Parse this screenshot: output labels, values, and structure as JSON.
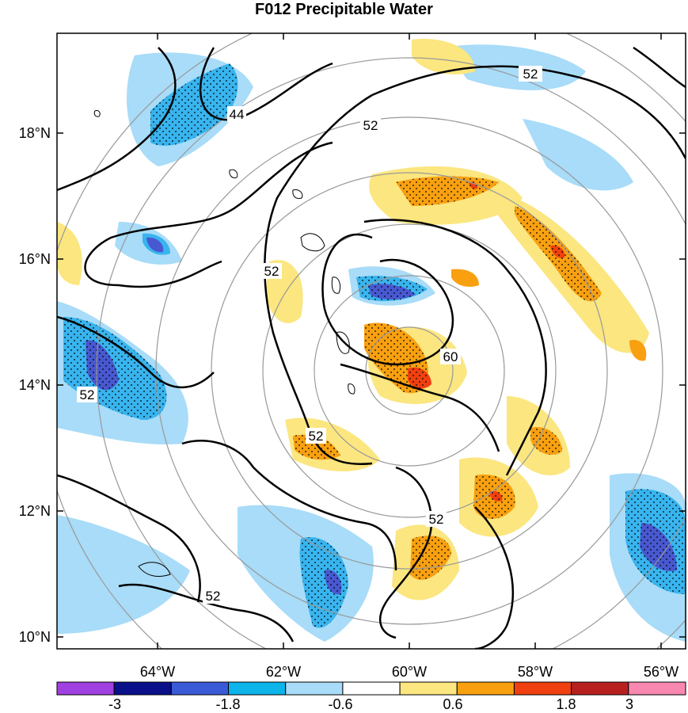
{
  "title": "F012 Precipitable Water",
  "lat_labels": [
    "18°N",
    "16°N",
    "14°N",
    "12°N",
    "10°N"
  ],
  "lon_labels": [
    "64°W",
    "62°W",
    "60°W",
    "58°W",
    "56°W"
  ],
  "contour_labels": [
    "44",
    "52",
    "52",
    "52",
    "52",
    "52",
    "52",
    "52",
    "60"
  ],
  "colorbar": {
    "labels": [
      "-3",
      "-1.8",
      "-0.6",
      "0.6",
      "1.8",
      "3"
    ],
    "colors": [
      "#a040e0",
      "#0a108a",
      "#3a5ad8",
      "#0cb4ea",
      "#a8dcf8",
      "#ffffff",
      "#fbe680",
      "#f8a010",
      "#f04010",
      "#b82020",
      "#f888b0"
    ]
  },
  "palette": {
    "light_blue": "#a8dcf8",
    "mid_blue": "#38b4ee",
    "dark_blue": "#4858d0",
    "light_yellow": "#fbe680",
    "orange": "#f8a010",
    "red": "#f04010"
  }
}
